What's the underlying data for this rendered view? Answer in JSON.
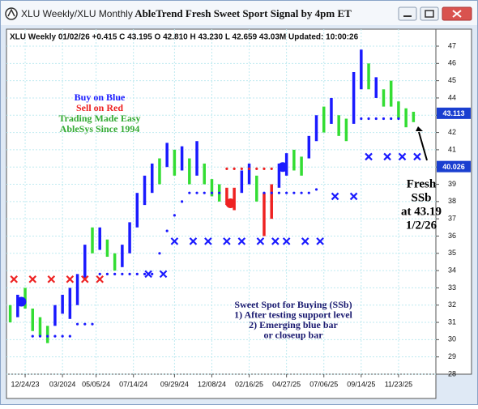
{
  "window": {
    "caption": "XLU Weekly/XLU Monthly",
    "title": "AbleTrend Fresh Sweet Sport Signal by 4pm ET"
  },
  "chart_data": {
    "type": "range_bar",
    "info": "XLU  Weekly 01/02/26 +0.415 C 43.195 O 42.810 H 43.230 L 42.659 43.03M Updated: 10:00:26",
    "x": [
      -4,
      -2,
      0,
      2,
      4,
      6,
      8,
      10,
      12,
      14,
      16,
      18,
      20,
      22,
      24,
      26,
      28,
      30,
      32,
      34,
      36,
      38,
      40,
      42,
      44,
      46,
      48,
      50,
      52,
      54,
      56,
      58,
      60,
      62,
      64,
      66,
      68,
      70,
      72,
      74,
      76,
      78,
      80,
      82,
      84,
      86,
      88,
      90,
      92,
      94,
      96,
      98,
      100,
      102,
      104
    ],
    "low": [
      31.0,
      31.3,
      31.8,
      30.5,
      30.2,
      29.8,
      30.8,
      31.5,
      31.2,
      32.0,
      33.5,
      35.0,
      35.2,
      34.8,
      34.0,
      34.2,
      35.0,
      36.5,
      37.8,
      38.5,
      39.0,
      40.0,
      39.5,
      39.8,
      39.0,
      39.5,
      39.0,
      38.3,
      38.0,
      37.8,
      37.5,
      38.5,
      39.0,
      38.0,
      36.0,
      37.0,
      38.8,
      39.5,
      39.8,
      39.5,
      40.5,
      41.5,
      42.0,
      42.5,
      41.8,
      41.5,
      42.5,
      44.5,
      44.5,
      44.0,
      43.5,
      43.5,
      42.8,
      42.3,
      42.6
    ],
    "high": [
      32.0,
      32.6,
      33.0,
      31.8,
      31.3,
      30.8,
      32.0,
      32.6,
      33.0,
      33.8,
      35.5,
      36.5,
      36.5,
      35.8,
      35.0,
      35.5,
      36.8,
      38.5,
      39.5,
      40.2,
      40.5,
      41.4,
      41.0,
      41.2,
      40.5,
      41.5,
      40.2,
      39.3,
      39.0,
      38.8,
      38.8,
      39.8,
      40.2,
      39.5,
      38.5,
      39.0,
      40.2,
      40.8,
      41.0,
      40.6,
      41.8,
      43.0,
      43.5,
      44.0,
      43.0,
      42.8,
      45.5,
      46.8,
      46.0,
      45.2,
      44.5,
      45.0,
      43.8,
      43.4,
      43.2
    ],
    "bar_colors": [
      "#33dd33",
      "#1a1aff",
      "#33dd33",
      "#33dd33",
      "#33dd33",
      "#33dd33",
      "#1a1aff",
      "#1a1aff",
      "#1a1aff",
      "#1a1aff",
      "#1a1aff",
      "#33dd33",
      "#1a1aff",
      "#33dd33",
      "#33dd33",
      "#1a1aff",
      "#1a1aff",
      "#1a1aff",
      "#1a1aff",
      "#1a1aff",
      "#33dd33",
      "#1a1aff",
      "#33dd33",
      "#1a1aff",
      "#33dd33",
      "#1a1aff",
      "#33dd33",
      "#33dd33",
      "#33dd33",
      "#ee2222",
      "#ee2222",
      "#1a1aff",
      "#1a1aff",
      "#33dd33",
      "#ee2222",
      "#ee2222",
      "#1a1aff",
      "#1a1aff",
      "#33dd33",
      "#33dd33",
      "#1a1aff",
      "#1a1aff",
      "#33dd33",
      "#1a1aff",
      "#33dd33",
      "#33dd33",
      "#1a1aff",
      "#1a1aff",
      "#33dd33",
      "#1a1aff",
      "#33dd33",
      "#33dd33",
      "#33dd33",
      "#33dd33",
      "#33dd33"
    ],
    "sell_x": {
      "color": "#ee2222",
      "x": [
        -3,
        2,
        7,
        12,
        16,
        20
      ],
      "y": [
        33.5,
        33.5,
        33.5,
        33.5,
        33.5,
        33.5
      ]
    },
    "buy_x": {
      "color": "#1a1aff",
      "x": [
        33,
        37,
        40,
        45,
        49,
        54,
        58,
        63,
        67,
        70,
        75,
        79,
        83,
        88,
        92,
        97,
        101,
        105
      ],
      "y": [
        33.8,
        33.8,
        35.7,
        35.7,
        35.7,
        35.7,
        35.7,
        35.7,
        35.7,
        35.7,
        35.7,
        35.7,
        38.3,
        38.3,
        40.6,
        40.6,
        40.6,
        40.6
      ]
    },
    "buy_stops": {
      "color": "#1a1aff",
      "x": [
        2,
        4,
        6,
        8,
        10,
        12,
        14,
        16,
        18,
        20,
        22,
        24,
        26,
        28,
        30,
        32,
        34,
        36,
        38,
        40,
        42,
        44,
        46,
        48,
        50,
        52,
        64,
        66,
        68,
        70,
        72,
        74,
        76,
        78,
        90,
        92,
        94,
        96,
        98,
        100
      ],
      "y": [
        30.2,
        30.2,
        30.2,
        30.2,
        30.2,
        30.2,
        30.9,
        30.9,
        30.9,
        33.8,
        33.8,
        33.8,
        33.8,
        33.8,
        33.8,
        33.8,
        33.8,
        35.0,
        36.3,
        37.2,
        38.0,
        38.5,
        38.5,
        38.5,
        38.5,
        38.5,
        38.5,
        38.5,
        38.5,
        38.5,
        38.5,
        38.5,
        38.5,
        38.7,
        42.8,
        42.8,
        42.8,
        42.8,
        42.8,
        42.8
      ]
    },
    "sell_stops": {
      "color": "#ee2222",
      "x": [
        54,
        56,
        58,
        60,
        62,
        64,
        66
      ],
      "y": [
        39.9,
        39.9,
        39.9,
        39.9,
        39.9,
        39.9,
        39.9
      ]
    },
    "circles": {
      "x": [
        -1,
        55,
        69
      ],
      "y": [
        32.2,
        37.9,
        40.0
      ],
      "colors": [
        "#1a1aff",
        "#ee2222",
        "#1a1aff"
      ]
    },
    "price_tags": [
      43.113,
      40.026
    ],
    "legend_lines": [
      {
        "text": "Buy on Blue",
        "color": "#1a1aff"
      },
      {
        "text": "Sell on Red",
        "color": "#ee2222"
      },
      {
        "text": "Trading Made Easy",
        "color": "#33aa33"
      },
      {
        "text": "AbleSys Since 1994",
        "color": "#33aa33"
      }
    ],
    "note_lines": [
      "Sweet Spot for Buying (SSb)",
      "1) After testing support level",
      "2) Emerging blue bar",
      "or closeup bar"
    ],
    "callout_lines": [
      "Fresh",
      "SSb",
      "at 43.19",
      "1/2/26"
    ],
    "xlim": [
      -5,
      110
    ],
    "xticks": [
      {
        "value": 0,
        "label": "12/24/23"
      },
      {
        "value": 10,
        "label": "03/2024"
      },
      {
        "value": 19,
        "label": "05/05/24"
      },
      {
        "value": 29,
        "label": "07/14/24"
      },
      {
        "value": 40,
        "label": "09/29/24"
      },
      {
        "value": 50,
        "label": "12/08/24"
      },
      {
        "value": 60,
        "label": "02/16/25"
      },
      {
        "value": 70,
        "label": "04/27/25"
      },
      {
        "value": 80,
        "label": "07/06/25"
      },
      {
        "value": 90,
        "label": "09/14/25"
      },
      {
        "value": 100,
        "label": "11/23/25"
      }
    ],
    "ylim": [
      28,
      47
    ],
    "yticks": [
      28,
      29,
      30,
      31,
      32,
      33,
      34,
      35,
      36,
      37,
      38,
      39,
      40,
      41,
      42,
      43,
      44,
      45,
      46,
      47
    ],
    "grid": true
  }
}
